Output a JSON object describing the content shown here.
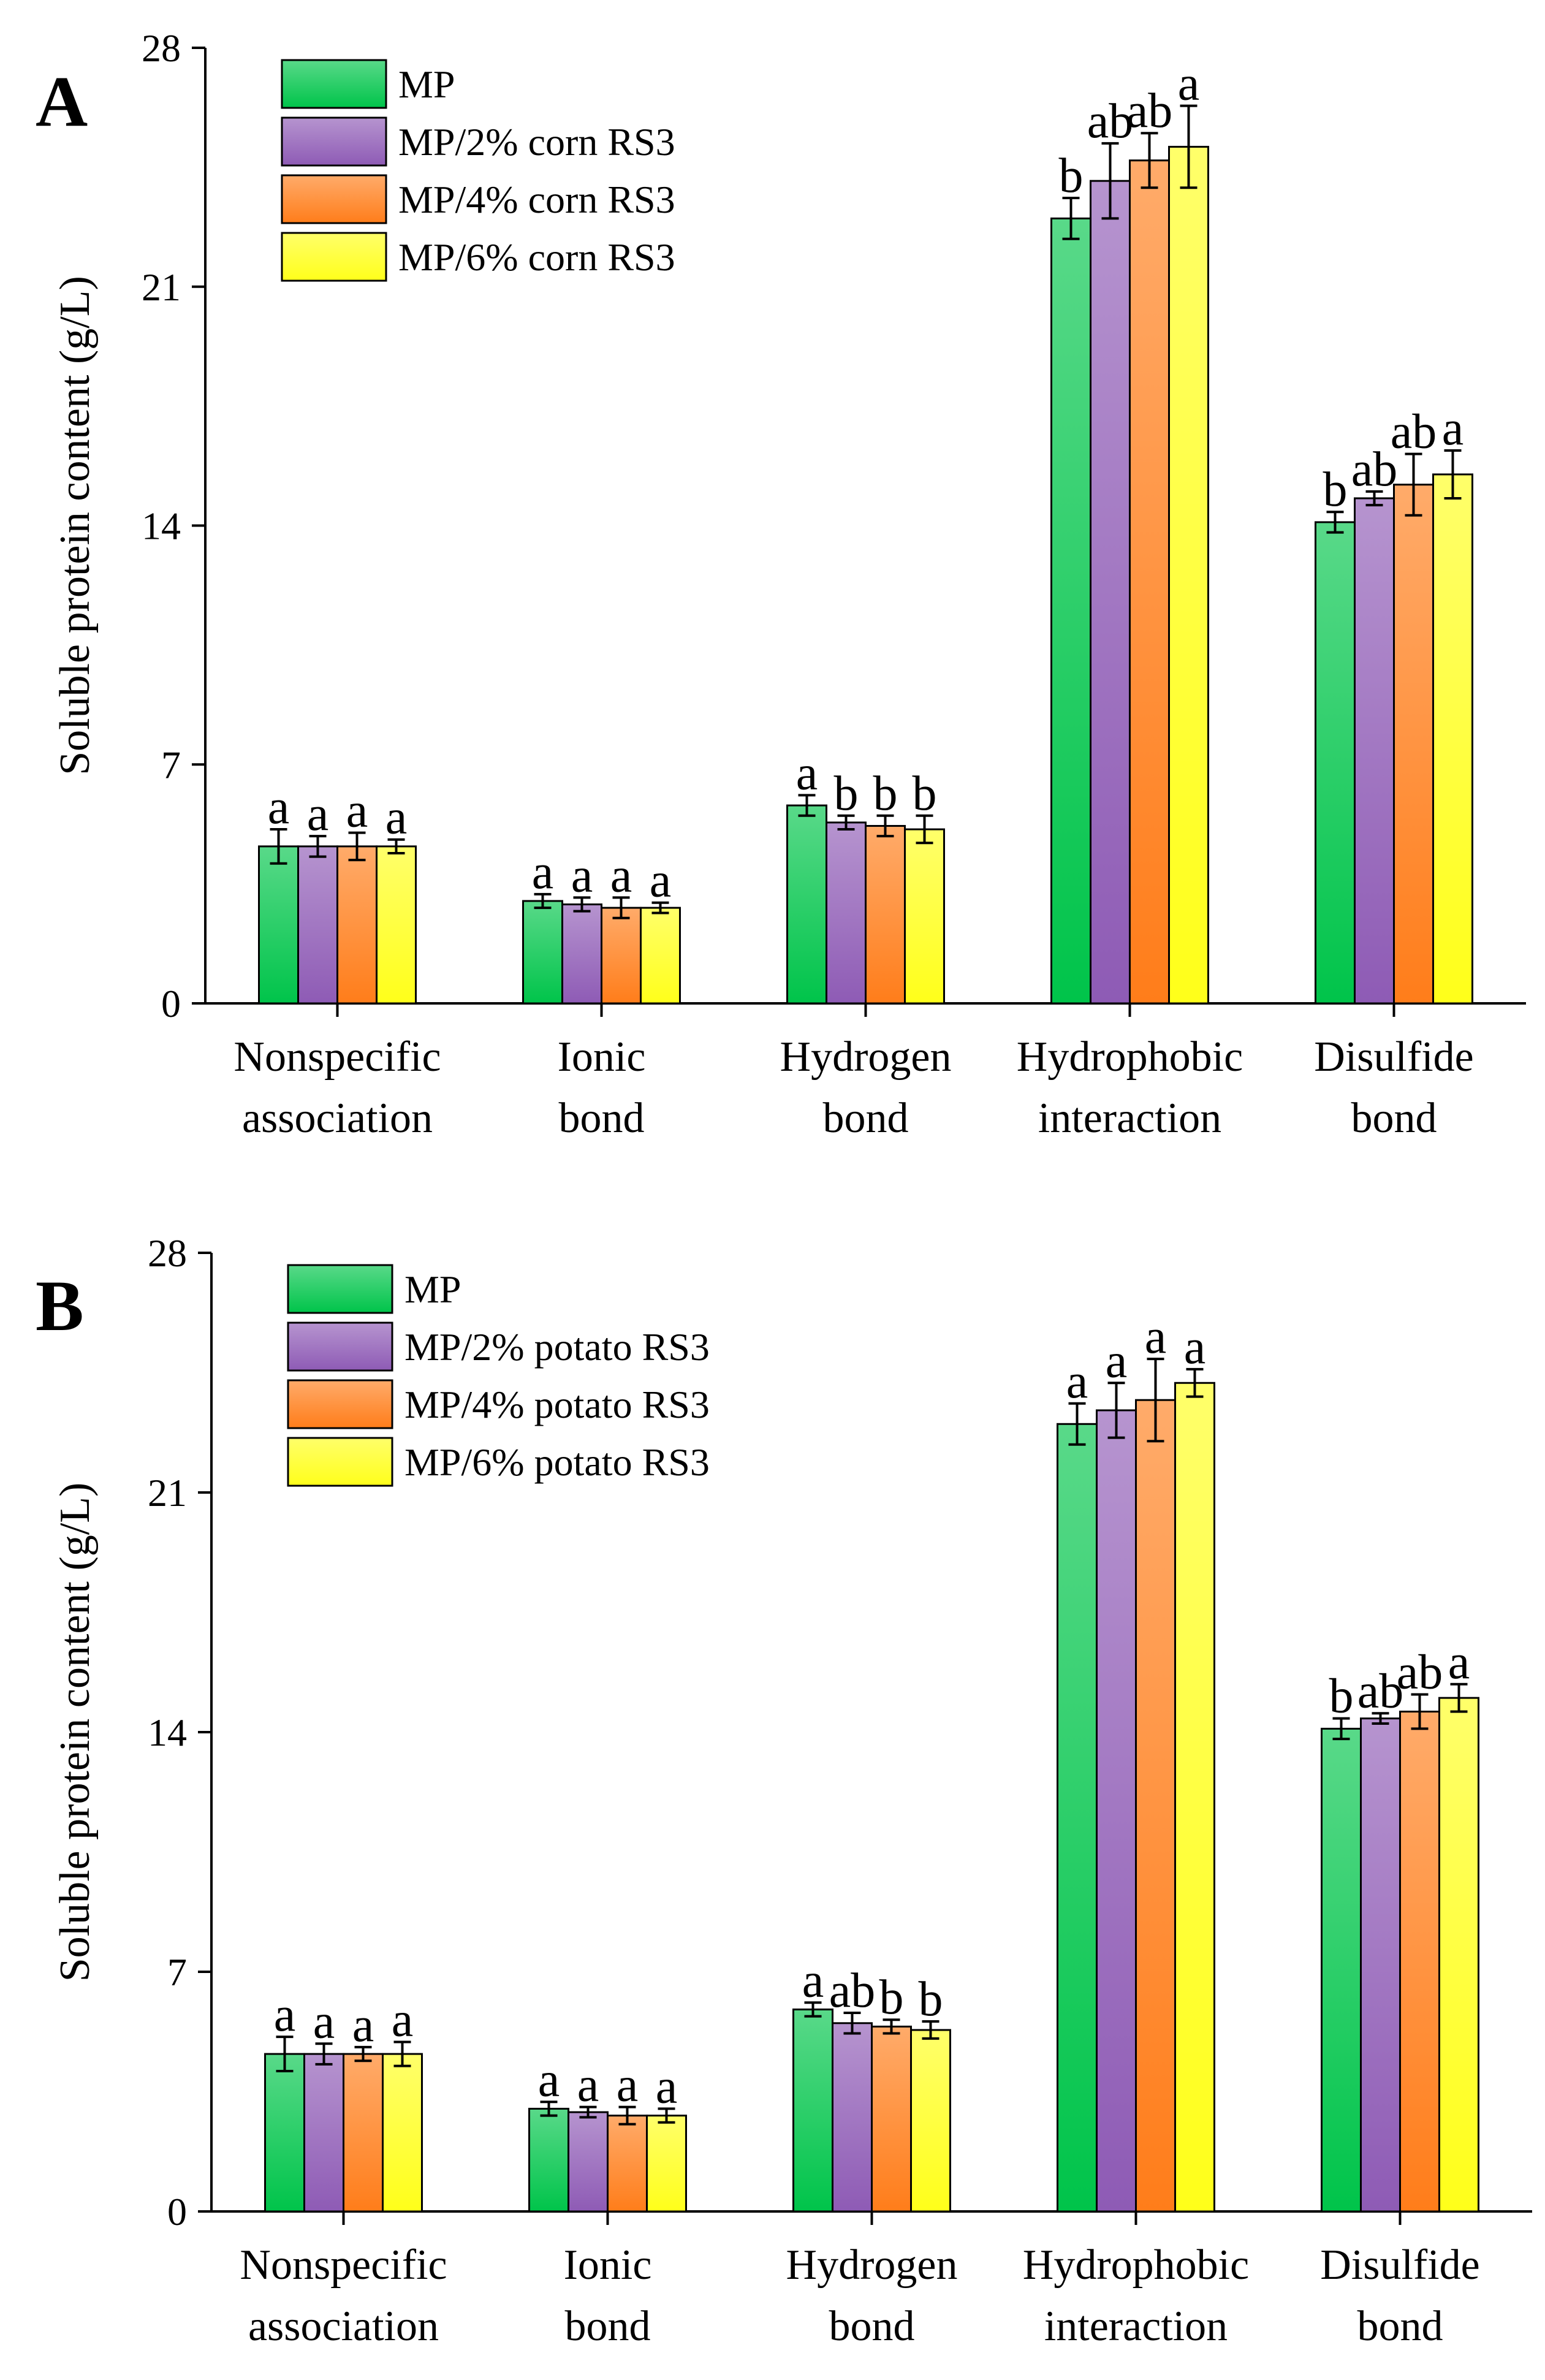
{
  "chart_data": [
    {
      "type": "bar",
      "panel_label": "A",
      "title": "",
      "ylabel": "Soluble protein content (g/L)",
      "xlabel": "",
      "ylim": [
        0,
        28
      ],
      "yticks": [
        "0",
        "7",
        "14",
        "21",
        "28"
      ],
      "categories": [
        [
          "Nonspecific",
          "association"
        ],
        [
          "Ionic",
          "bond"
        ],
        [
          "Hydrogen",
          "bond"
        ],
        [
          "Hydrophobic",
          "interaction"
        ],
        [
          "Disulfide",
          "bond"
        ]
      ],
      "legend_position": "top-left",
      "series": [
        {
          "name": "MP",
          "color": "#00c44a",
          "values": [
            4.6,
            3.0,
            5.8,
            23.0,
            14.1
          ],
          "errors": [
            0.5,
            0.2,
            0.3,
            0.6,
            0.3
          ],
          "labels": [
            "a",
            "a",
            "a",
            "b",
            "b"
          ]
        },
        {
          "name": "MP/2% corn RS3",
          "color": "#8e5bb5",
          "values": [
            4.6,
            2.9,
            5.3,
            24.1,
            14.8
          ],
          "errors": [
            0.3,
            0.2,
            0.2,
            1.1,
            0.2
          ],
          "labels": [
            "a",
            "a",
            "b",
            "ab",
            "ab"
          ]
        },
        {
          "name": "MP/4% corn RS3",
          "color": "#ff7d1a",
          "values": [
            4.6,
            2.8,
            5.2,
            24.7,
            15.2
          ],
          "errors": [
            0.4,
            0.3,
            0.3,
            0.8,
            0.9
          ],
          "labels": [
            "a",
            "a",
            "b",
            "ab",
            "ab"
          ]
        },
        {
          "name": "MP/6% corn RS3",
          "color": "#ffff1a",
          "values": [
            4.6,
            2.8,
            5.1,
            25.1,
            15.5
          ],
          "errors": [
            0.2,
            0.15,
            0.4,
            1.2,
            0.7
          ],
          "labels": [
            "a",
            "a",
            "b",
            "a",
            "a"
          ]
        }
      ]
    },
    {
      "type": "bar",
      "panel_label": "B",
      "title": "",
      "ylabel": "Soluble protein content (g/L)",
      "xlabel": "",
      "ylim": [
        0,
        28
      ],
      "yticks": [
        "0",
        "7",
        "14",
        "21",
        "28"
      ],
      "categories": [
        [
          "Nonspecific",
          "association"
        ],
        [
          "Ionic",
          "bond"
        ],
        [
          "Hydrogen",
          "bond"
        ],
        [
          "Hydrophobic",
          "interaction"
        ],
        [
          "Disulfide",
          "bond"
        ]
      ],
      "legend_position": "top-left",
      "series": [
        {
          "name": "MP",
          "color": "#00c44a",
          "values": [
            4.6,
            3.0,
            5.9,
            23.0,
            14.1
          ],
          "errors": [
            0.5,
            0.2,
            0.2,
            0.6,
            0.3
          ],
          "labels": [
            "a",
            "a",
            "a",
            "a",
            "b"
          ]
        },
        {
          "name": "MP/2% potato RS3",
          "color": "#8e5bb5",
          "values": [
            4.6,
            2.9,
            5.5,
            23.4,
            14.4
          ],
          "errors": [
            0.3,
            0.15,
            0.3,
            0.8,
            0.15
          ],
          "labels": [
            "a",
            "a",
            "ab",
            "a",
            "ab"
          ]
        },
        {
          "name": "MP/4% potato RS3",
          "color": "#ff7d1a",
          "values": [
            4.6,
            2.8,
            5.4,
            23.7,
            14.6
          ],
          "errors": [
            0.2,
            0.25,
            0.2,
            1.2,
            0.5
          ],
          "labels": [
            "a",
            "a",
            "b",
            "a",
            "ab"
          ]
        },
        {
          "name": "MP/6% potato RS3",
          "color": "#ffff1a",
          "values": [
            4.6,
            2.8,
            5.3,
            24.2,
            15.0
          ],
          "errors": [
            0.35,
            0.2,
            0.25,
            0.4,
            0.4
          ],
          "labels": [
            "a",
            "a",
            "b",
            "a",
            "a"
          ]
        }
      ]
    }
  ]
}
